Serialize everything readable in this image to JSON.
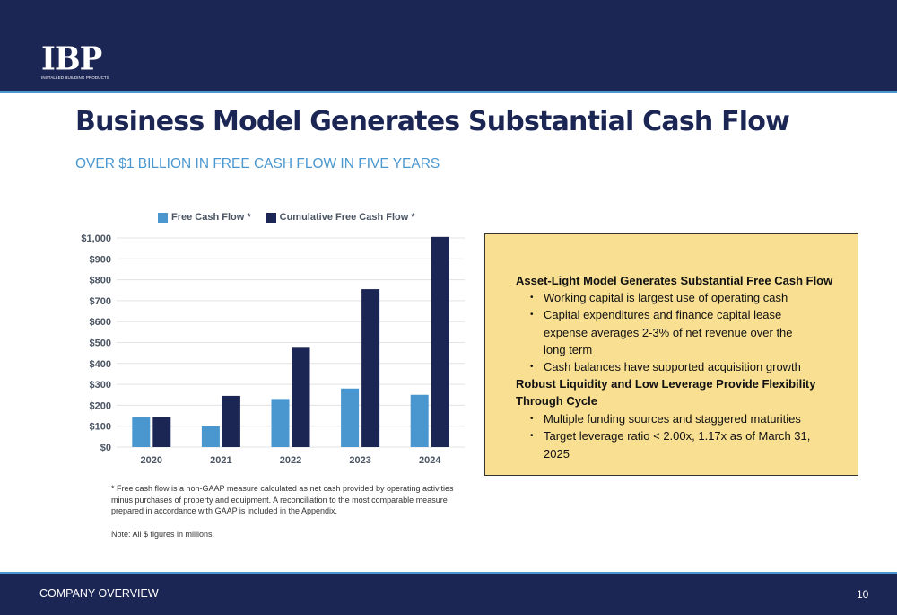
{
  "logo": {
    "text": "IBP",
    "subtext": "INSTALLED BUILDING PRODUCTS"
  },
  "title": "Business Model Generates Substantial Cash Flow",
  "subtitle": "OVER $1 BILLION IN FREE CASH FLOW IN FIVE YEARS",
  "colors": {
    "navy": "#1c2654",
    "accent_blue": "#4a97cf",
    "panel_bg": "#f8df92"
  },
  "chart_data": {
    "type": "bar",
    "categories": [
      "2020",
      "2021",
      "2022",
      "2023",
      "2024"
    ],
    "series": [
      {
        "name": "Free Cash Flow *",
        "color": "#4a97cf",
        "values": [
          145,
          100,
          230,
          280,
          250
        ]
      },
      {
        "name": "Cumulative Free Cash Flow *",
        "color": "#1c2654",
        "values": [
          145,
          245,
          475,
          755,
          1005
        ]
      }
    ],
    "yticks": [
      "$0",
      "$100",
      "$200",
      "$300",
      "$400",
      "$500",
      "$600",
      "$700",
      "$800",
      "$900",
      "$1,000"
    ],
    "ylim": [
      0,
      1000
    ],
    "grid": true,
    "legend": "top"
  },
  "footnote": "* Free cash flow is a non-GAAP measure calculated as net cash provided by operating activities minus purchases of property and equipment. A reconciliation to the most comparable measure prepared in accordance with GAAP is included in the Appendix.",
  "note": "Note: All $ figures in millions.",
  "panel": {
    "heading1": "Asset-Light Model Generates Substantial Free Cash Flow",
    "bullets1": [
      "Working capital is largest use of operating cash",
      "Capital expenditures and finance capital lease expense averages 2-3% of net revenue over the long term",
      "Cash balances have supported acquisition growth"
    ],
    "heading2": "Robust Liquidity and Low Leverage Provide Flexibility Through Cycle",
    "bullets2": [
      "Multiple funding sources and staggered maturities",
      "Target leverage ratio < 2.00x, 1.17x as of March 31, 2025"
    ]
  },
  "footer": {
    "left": "COMPANY OVERVIEW",
    "page": "10"
  }
}
